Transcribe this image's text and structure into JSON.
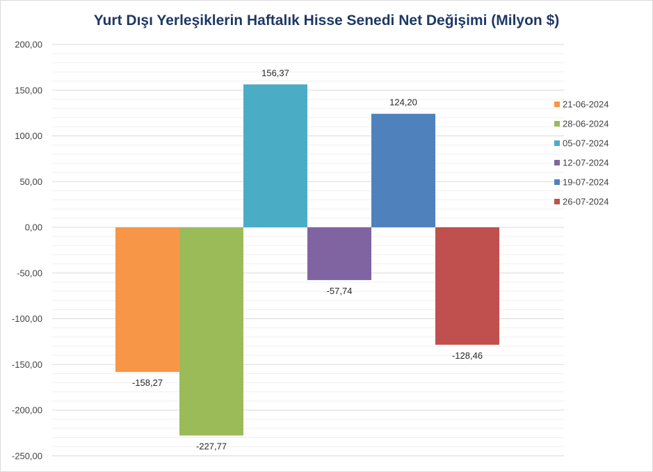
{
  "chart_data": {
    "type": "bar",
    "title": "Yurt Dışı Yerleşiklerin Haftalık Hisse Senedi Net Değişimi (Milyon $)",
    "xlabel": "",
    "ylabel": "",
    "ylim": [
      -250,
      200
    ],
    "yticks": [
      200,
      150,
      100,
      50,
      0,
      -50,
      -100,
      -150,
      -200,
      -250
    ],
    "ytick_labels": [
      "200,00",
      "150,00",
      "100,00",
      "50,00",
      "0,00",
      "-50,00",
      "-100,00",
      "-150,00",
      "-200,00",
      "-250,00"
    ],
    "grid": true,
    "legend_position": "right",
    "series": [
      {
        "name": "21-06-2024",
        "value": -158.27,
        "label": "-158,27",
        "color": "#f79646"
      },
      {
        "name": "28-06-2024",
        "value": -227.77,
        "label": "-227,77",
        "color": "#9bbb59"
      },
      {
        "name": "05-07-2024",
        "value": 156.37,
        "label": "156,37",
        "color": "#4bacc6"
      },
      {
        "name": "12-07-2024",
        "value": -57.74,
        "label": "-57,74",
        "color": "#8064a2"
      },
      {
        "name": "19-07-2024",
        "value": 124.2,
        "label": "124,20",
        "color": "#4f81bd"
      },
      {
        "name": "26-07-2024",
        "value": -128.46,
        "label": "-128,46",
        "color": "#c0504d"
      }
    ]
  }
}
